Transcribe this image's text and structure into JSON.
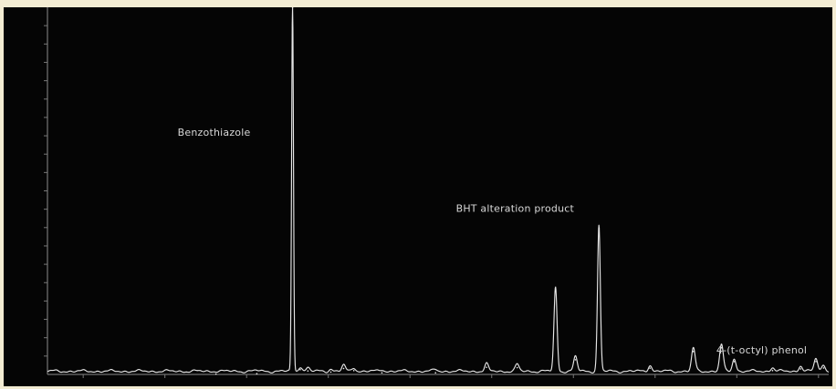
{
  "chart_data": {
    "type": "line",
    "title": "",
    "xlabel": "",
    "ylabel": "",
    "grid": false,
    "xlim": [
      2.9,
      18.2
    ],
    "ylim": [
      0,
      40000000
    ],
    "x_ticks": [
      {
        "value": 3.6,
        "label": ""
      },
      {
        "value": 5.2,
        "label": ""
      },
      {
        "value": 6.8,
        "label": ""
      },
      {
        "value": 8.4,
        "label": ""
      },
      {
        "value": 10.0,
        "label": ""
      },
      {
        "value": 11.6,
        "label": ""
      },
      {
        "value": 13.2,
        "label": ""
      },
      {
        "value": 14.8,
        "label": ""
      },
      {
        "value": 16.4,
        "label": ""
      },
      {
        "value": 18.0,
        "label": ""
      }
    ],
    "y_ticks": [
      {
        "value": 2000000,
        "label": ""
      },
      {
        "value": 4000000,
        "label": ""
      },
      {
        "value": 6000000,
        "label": ""
      },
      {
        "value": 8000000,
        "label": ""
      },
      {
        "value": 10000000,
        "label": ""
      },
      {
        "value": 12000000,
        "label": ""
      },
      {
        "value": 14000000,
        "label": ""
      },
      {
        "value": 16000000,
        "label": ""
      },
      {
        "value": 18000000,
        "label": ""
      },
      {
        "value": 20000000,
        "label": ""
      },
      {
        "value": 22000000,
        "label": ""
      },
      {
        "value": 24000000,
        "label": ""
      },
      {
        "value": 26000000,
        "label": ""
      },
      {
        "value": 28000000,
        "label": ""
      },
      {
        "value": 30000000,
        "label": ""
      },
      {
        "value": 32000000,
        "label": ""
      },
      {
        "value": 34000000,
        "label": ""
      },
      {
        "value": 36000000,
        "label": ""
      },
      {
        "value": 38000000,
        "label": ""
      }
    ],
    "series": [
      {
        "name": "",
        "baseline": 350000,
        "peaks": [
          {
            "x": 6.2,
            "y": 45000
          },
          {
            "x": 7.0,
            "y": 85000
          },
          {
            "x": 7.7,
            "y": 40000000,
            "width": 0.018
          },
          {
            "x": 7.85,
            "y": 520000
          },
          {
            "x": 8.0,
            "y": 380000
          },
          {
            "x": 8.45,
            "y": 260000
          },
          {
            "x": 8.7,
            "y": 650000
          },
          {
            "x": 8.9,
            "y": 420000
          },
          {
            "x": 9.45,
            "y": 180000
          },
          {
            "x": 10.5,
            "y": 180000
          },
          {
            "x": 11.5,
            "y": 780000
          },
          {
            "x": 12.1,
            "y": 740000
          },
          {
            "x": 12.85,
            "y": 9100000,
            "width": 0.03
          },
          {
            "x": 13.24,
            "y": 1600000
          },
          {
            "x": 13.7,
            "y": 15900000,
            "width": 0.027
          },
          {
            "x": 14.7,
            "y": 680000
          },
          {
            "x": 15.55,
            "y": 2500000
          },
          {
            "x": 16.1,
            "y": 2900000
          },
          {
            "x": 16.35,
            "y": 1400000
          },
          {
            "x": 17.1,
            "y": 420000
          },
          {
            "x": 17.65,
            "y": 600000
          },
          {
            "x": 17.95,
            "y": 1400000
          },
          {
            "x": 18.1,
            "y": 700000
          }
        ]
      }
    ],
    "annotations": [
      {
        "text": "Benzothiazole",
        "x": 5.45,
        "y": 26000000
      },
      {
        "text": "BHT alteration product",
        "x": 10.9,
        "y": 17700000
      },
      {
        "text": "4-(t-octyl) phenol",
        "x": 16.0,
        "y": 2300000
      }
    ]
  }
}
